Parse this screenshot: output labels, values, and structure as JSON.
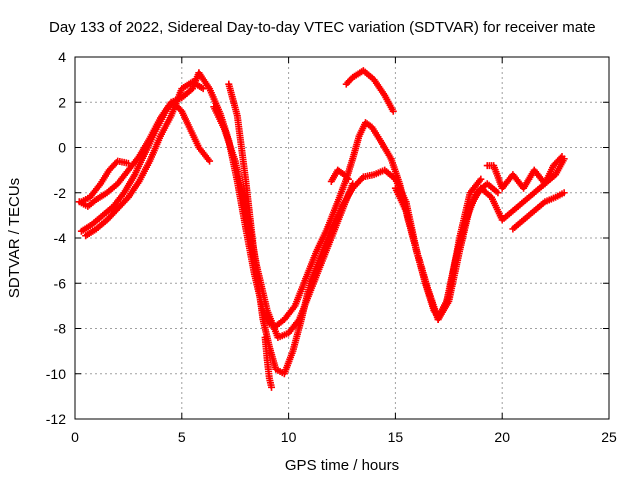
{
  "chart_data": {
    "type": "scatter",
    "title": "Day 133 of 2022, Sidereal Day-to-day VTEC variation (SDTVAR) for receiver mate",
    "xlabel": "GPS time / hours",
    "ylabel": "SDTVAR / TECUs",
    "xlim": [
      0,
      25
    ],
    "ylim": [
      -12,
      4
    ],
    "xticks": [
      0,
      5,
      10,
      15,
      20,
      25
    ],
    "yticks": [
      -12,
      -10,
      -8,
      -6,
      -4,
      -2,
      0,
      2,
      4
    ],
    "grid": true,
    "marker": "plus",
    "series_color": "#ff0000",
    "series": [
      {
        "x": [
          0.2,
          0.6,
          1.0,
          1.5,
          2.0,
          2.5,
          3.0,
          3.5,
          4.0,
          4.5,
          5.0,
          5.5,
          5.8
        ],
        "y": [
          -2.4,
          -2.6,
          -2.3,
          -2.0,
          -1.6,
          -1.0,
          -0.4,
          0.4,
          1.3,
          2.0,
          2.2,
          2.6,
          3.3
        ]
      },
      {
        "x": [
          5.8,
          6.3,
          6.8,
          7.2,
          7.6,
          8.0,
          8.4,
          8.8,
          9.1,
          9.4,
          9.8,
          10.3,
          10.8
        ],
        "y": [
          3.3,
          2.6,
          1.5,
          0.3,
          -1.5,
          -3.6,
          -5.6,
          -7.2,
          -7.8,
          -7.9,
          -7.6,
          -7.0,
          -5.8
        ]
      },
      {
        "x": [
          10.8,
          11.3,
          11.8,
          12.3,
          12.7,
          13.0,
          13.3,
          13.6,
          13.9,
          14.3,
          14.8
        ],
        "y": [
          -5.8,
          -4.6,
          -3.6,
          -2.4,
          -1.4,
          -0.5,
          0.5,
          1.1,
          0.9,
          0.3,
          -0.5
        ]
      },
      {
        "x": [
          14.8,
          15.2,
          15.6,
          16.0,
          16.4,
          16.8,
          17.0,
          17.4,
          17.8,
          18.3,
          18.8,
          19.3,
          19.8
        ],
        "y": [
          -0.5,
          -1.6,
          -3.2,
          -4.6,
          -6.0,
          -7.2,
          -7.5,
          -6.8,
          -5.0,
          -3.2,
          -2.0,
          -1.6,
          -2.0
        ]
      },
      {
        "x": [
          0.3,
          0.8,
          1.3,
          1.8,
          2.3,
          2.8,
          3.3,
          3.8,
          4.3,
          4.6,
          5.0,
          5.3,
          5.8,
          6.3
        ],
        "y": [
          -3.7,
          -3.4,
          -3.0,
          -2.6,
          -2.0,
          -1.2,
          -0.2,
          0.8,
          1.7,
          2.0,
          1.6,
          1.0,
          0.0,
          -0.6
        ]
      },
      {
        "x": [
          7.2,
          7.6,
          8.0,
          8.4,
          8.8,
          9.1,
          9.4,
          9.8,
          10.2,
          10.6,
          11.0
        ],
        "y": [
          2.8,
          1.4,
          -1.5,
          -4.8,
          -7.6,
          -8.8,
          -9.8,
          -10.0,
          -9.0,
          -7.6,
          -6.0
        ]
      },
      {
        "x": [
          11.0,
          11.5,
          12.0,
          12.5,
          13.0,
          13.5,
          14.0,
          14.5,
          15.0,
          15.5,
          16.0,
          16.5,
          17.0,
          17.5,
          18.0,
          18.5,
          19.0
        ],
        "y": [
          -6.0,
          -4.8,
          -3.6,
          -2.6,
          -1.8,
          -1.3,
          -1.2,
          -1.0,
          -1.4,
          -2.4,
          -4.6,
          -6.2,
          -7.6,
          -6.6,
          -4.0,
          -2.0,
          -1.4
        ]
      },
      {
        "x": [
          12.7,
          13.0,
          13.5,
          14.0,
          14.5,
          14.9
        ],
        "y": [
          2.8,
          3.1,
          3.4,
          3.0,
          2.3,
          1.6
        ]
      },
      {
        "x": [
          0.5,
          1.0,
          1.5,
          2.0,
          2.5,
          3.0,
          3.5,
          4.0,
          4.5,
          5.0,
          5.5,
          6.0
        ],
        "y": [
          -3.9,
          -3.6,
          -3.2,
          -2.7,
          -2.2,
          -1.5,
          -0.6,
          0.5,
          1.4,
          2.6,
          2.9,
          2.6
        ]
      },
      {
        "x": [
          6.5,
          7.0,
          7.5,
          8.0,
          8.5,
          9.0,
          9.5,
          10.0,
          10.5,
          11.0,
          11.5,
          12.0,
          12.5,
          13.0
        ],
        "y": [
          1.8,
          0.8,
          -0.6,
          -2.6,
          -5.2,
          -7.2,
          -8.4,
          -8.2,
          -7.6,
          -6.4,
          -5.2,
          -4.0,
          -2.8,
          -1.6
        ]
      },
      {
        "x": [
          15.0,
          15.5,
          16.0,
          16.5,
          17.0,
          17.5,
          18.0,
          18.5,
          19.0,
          19.5,
          20.0,
          20.5,
          21.0,
          21.5,
          22.0,
          22.5,
          22.9
        ],
        "y": [
          -1.8,
          -2.8,
          -4.6,
          -6.2,
          -7.6,
          -6.8,
          -4.6,
          -2.6,
          -1.8,
          -2.2,
          -3.2,
          -2.8,
          -2.4,
          -2.0,
          -1.6,
          -1.2,
          -0.5
        ]
      },
      {
        "x": [
          20.5,
          21.0,
          21.5,
          22.0,
          22.5,
          22.9
        ],
        "y": [
          -3.6,
          -3.2,
          -2.8,
          -2.4,
          -2.2,
          -2.0
        ]
      },
      {
        "x": [
          19.3,
          19.6,
          20.0,
          20.5,
          21.0,
          21.5,
          22.0,
          22.4,
          22.8
        ],
        "y": [
          -0.8,
          -0.8,
          -1.8,
          -1.2,
          -1.8,
          -1.0,
          -1.6,
          -0.8,
          -0.4
        ]
      },
      {
        "x": [
          0.3,
          0.7,
          1.2,
          1.6,
          2.0,
          2.5
        ],
        "y": [
          -2.4,
          -2.2,
          -1.6,
          -1.0,
          -0.6,
          -0.7
        ]
      },
      {
        "x": [
          8.9,
          9.0,
          9.1,
          9.2
        ],
        "y": [
          -8.4,
          -9.4,
          -10.2,
          -10.6
        ]
      },
      {
        "x": [
          12.0,
          12.3,
          12.6,
          12.8
        ],
        "y": [
          -1.5,
          -1.0,
          -1.2,
          -1.4
        ]
      }
    ]
  }
}
